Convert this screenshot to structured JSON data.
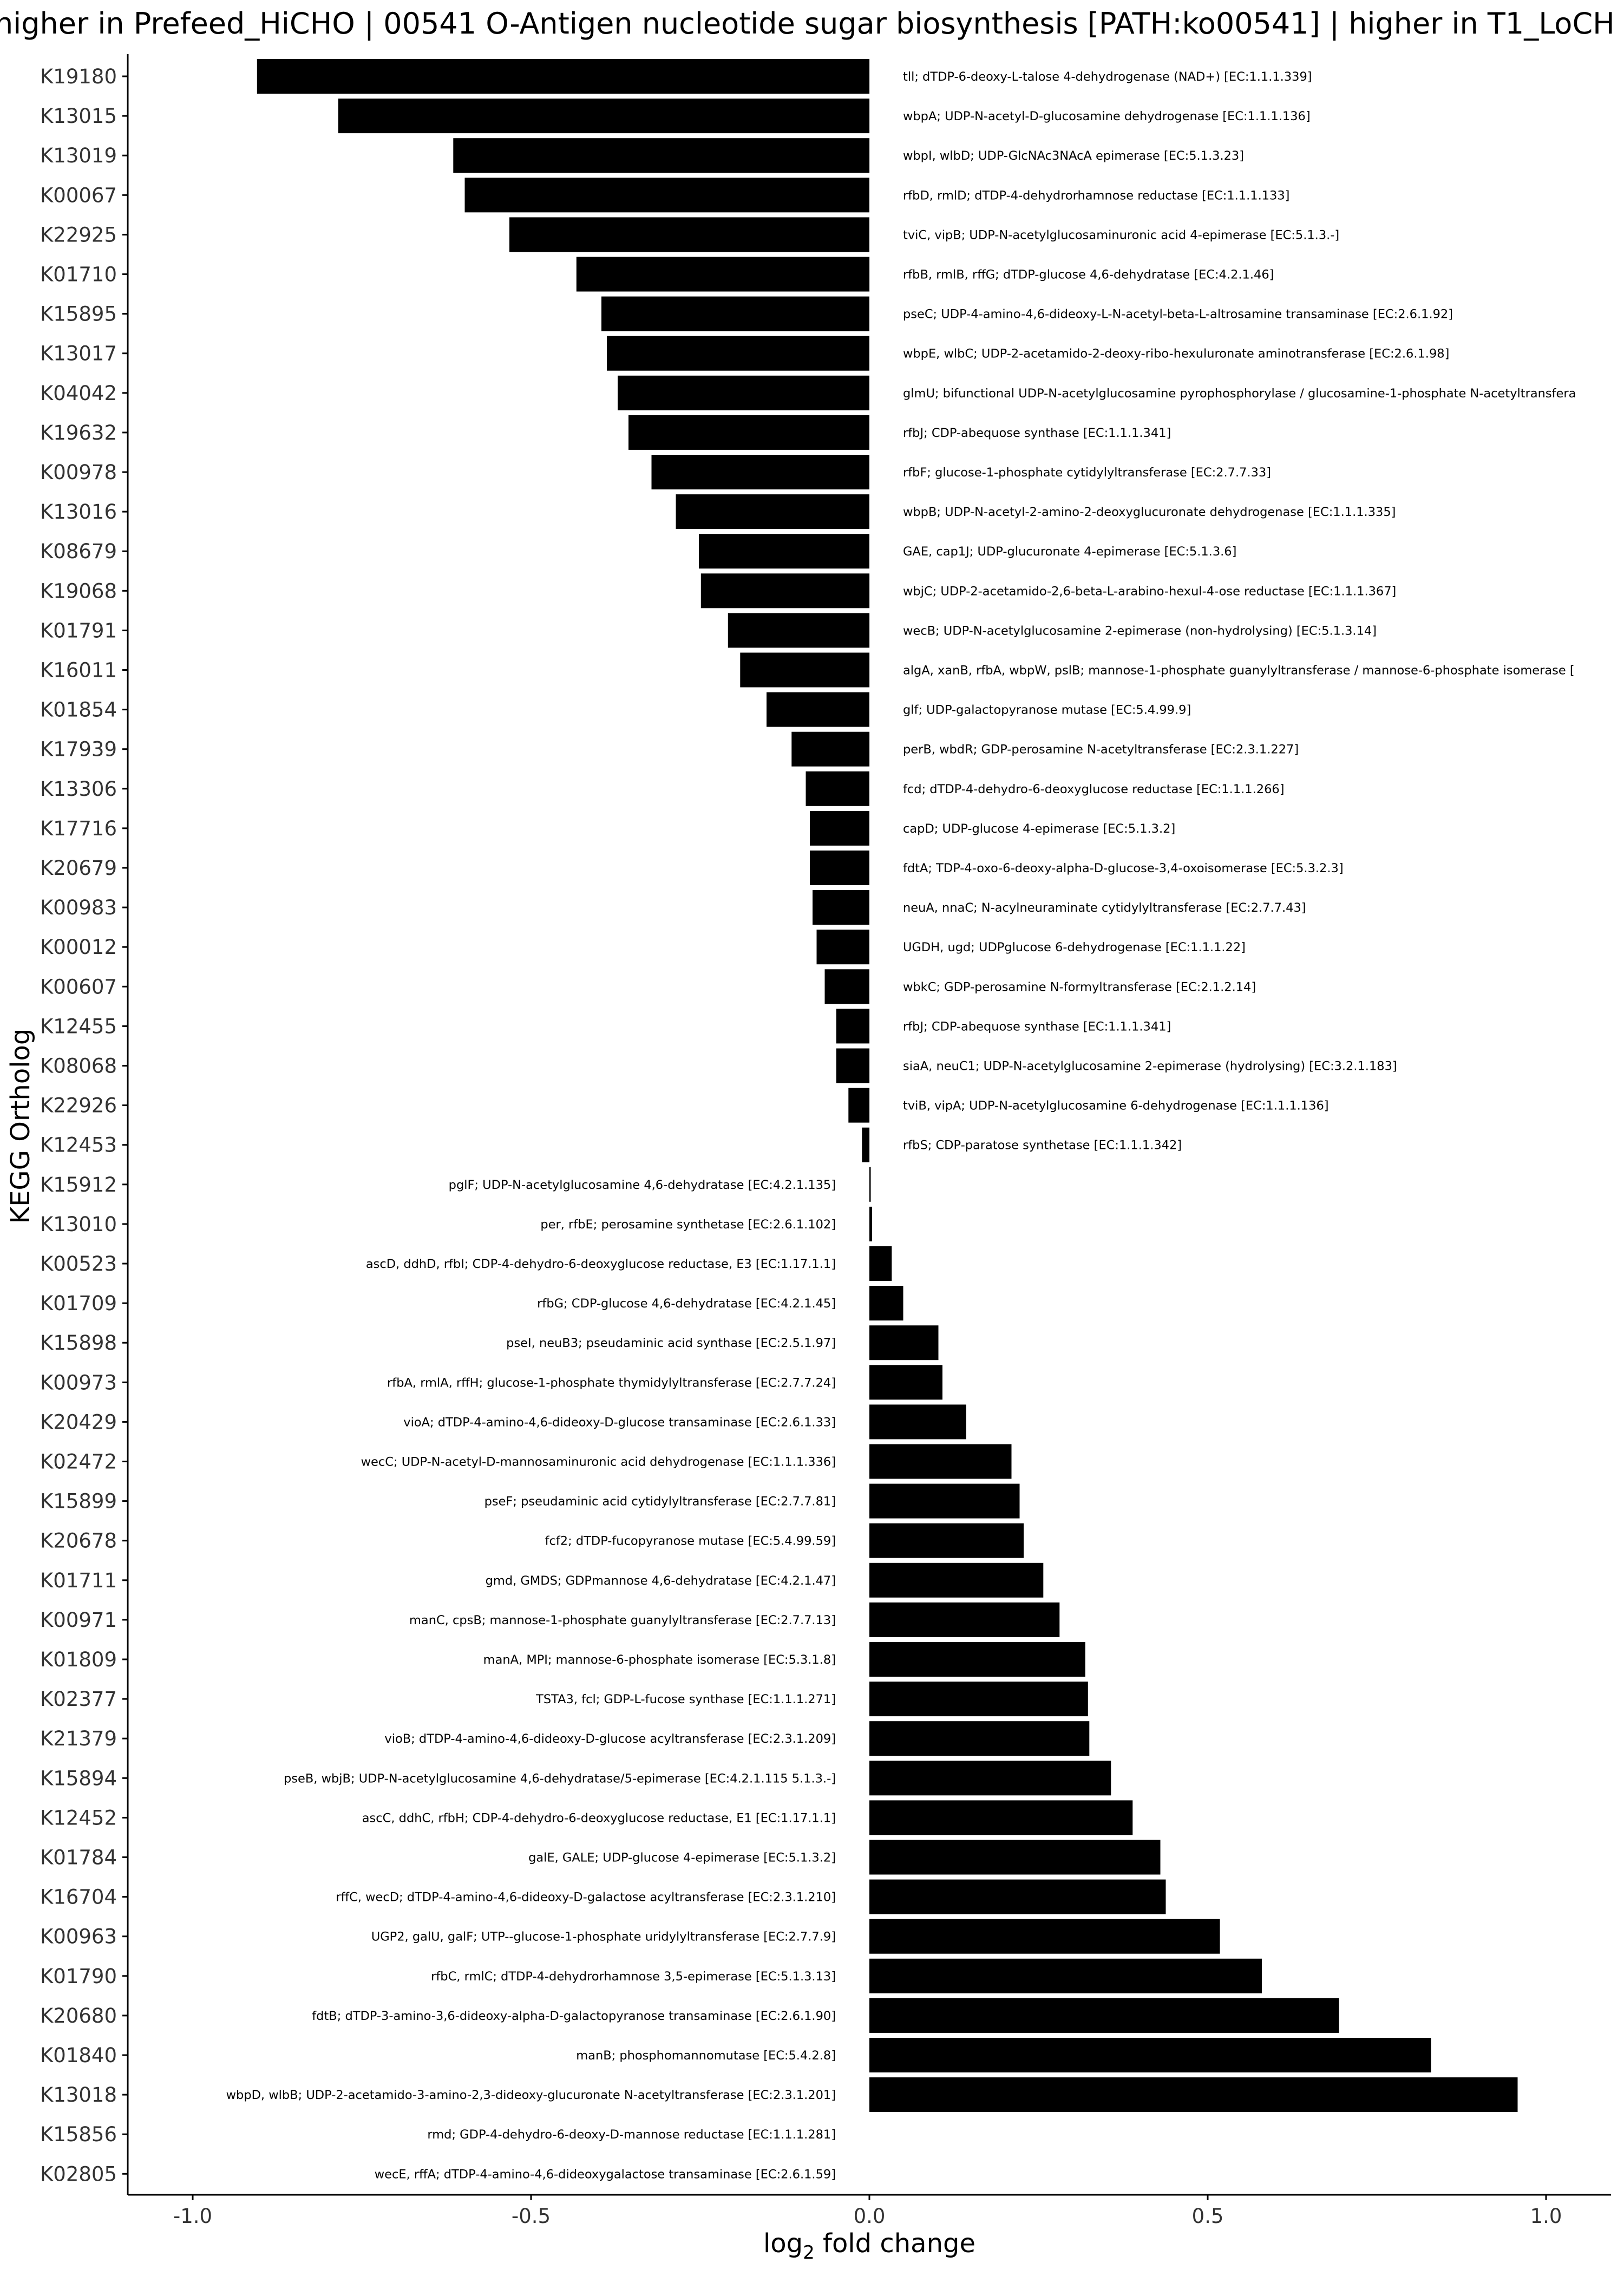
{
  "chart_data": {
    "type": "bar",
    "orientation": "horizontal",
    "title": "higher in Prefeed_HiCHO | 00541 O-Antigen nucleotide sugar biosynthesis [PATH:ko00541] | higher in T1_LoCH",
    "xlabel": "log₂ fold change",
    "ylabel": "KEGG Ortholog",
    "xlim": [
      -1.1,
      1.1
    ],
    "xticks": [
      -1.0,
      -0.5,
      0.0,
      0.5,
      1.0
    ],
    "xtick_labels": [
      "-1.0",
      "-0.5",
      "0.0",
      "0.5",
      "1.0"
    ],
    "grid": false,
    "bar_color": "#000000",
    "categories": [
      "K19180",
      "K13015",
      "K13019",
      "K00067",
      "K22925",
      "K01710",
      "K15895",
      "K13017",
      "K04042",
      "K19632",
      "K00978",
      "K13016",
      "K08679",
      "K19068",
      "K01791",
      "K16011",
      "K01854",
      "K17939",
      "K13306",
      "K17716",
      "K20679",
      "K00983",
      "K00012",
      "K00607",
      "K12455",
      "K08068",
      "K22926",
      "K12453",
      "K15912",
      "K13010",
      "K00523",
      "K01709",
      "K15898",
      "K00973",
      "K20429",
      "K02472",
      "K15899",
      "K20678",
      "K01711",
      "K00971",
      "K01809",
      "K02377",
      "K21379",
      "K15894",
      "K12452",
      "K01784",
      "K16704",
      "K00963",
      "K01790",
      "K20680",
      "K01840",
      "K13018",
      "K15856",
      "K02805"
    ],
    "values": [
      -0.905,
      -0.785,
      -0.615,
      -0.598,
      -0.532,
      -0.433,
      -0.396,
      -0.388,
      -0.372,
      -0.356,
      -0.322,
      -0.286,
      -0.252,
      -0.249,
      -0.209,
      -0.191,
      -0.152,
      -0.115,
      -0.094,
      -0.088,
      -0.088,
      -0.084,
      -0.078,
      -0.066,
      -0.049,
      -0.049,
      -0.031,
      -0.011,
      0.002,
      0.004,
      0.033,
      0.05,
      0.102,
      0.108,
      0.143,
      0.21,
      0.222,
      0.228,
      0.257,
      0.281,
      0.319,
      0.323,
      0.325,
      0.357,
      0.389,
      0.43,
      0.438,
      0.518,
      0.58,
      0.694,
      0.83,
      0.958,
      0.0,
      0.0
    ],
    "annotations": [
      "tll; dTDP-6-deoxy-L-talose 4-dehydrogenase (NAD+) [EC:1.1.1.339]",
      "wbpA; UDP-N-acetyl-D-glucosamine dehydrogenase [EC:1.1.1.136]",
      "wbpI, wlbD; UDP-GlcNAc3NAcA epimerase [EC:5.1.3.23]",
      "rfbD, rmlD; dTDP-4-dehydrorhamnose reductase [EC:1.1.1.133]",
      "tviC, vipB; UDP-N-acetylglucosaminuronic acid 4-epimerase [EC:5.1.3.-]",
      "rfbB, rmlB, rffG; dTDP-glucose 4,6-dehydratase [EC:4.2.1.46]",
      "pseC; UDP-4-amino-4,6-dideoxy-L-N-acetyl-beta-L-altrosamine transaminase [EC:2.6.1.92]",
      "wbpE, wlbC; UDP-2-acetamido-2-deoxy-ribo-hexuluronate aminotransferase [EC:2.6.1.98]",
      "glmU; bifunctional UDP-N-acetylglucosamine pyrophosphorylase / glucosamine-1-phosphate N-acetyltransfera",
      "rfbJ; CDP-abequose synthase [EC:1.1.1.341]",
      "rfbF; glucose-1-phosphate cytidylyltransferase [EC:2.7.7.33]",
      "wbpB; UDP-N-acetyl-2-amino-2-deoxyglucuronate dehydrogenase [EC:1.1.1.335]",
      "GAE, cap1J; UDP-glucuronate 4-epimerase [EC:5.1.3.6]",
      "wbjC; UDP-2-acetamido-2,6-beta-L-arabino-hexul-4-ose reductase [EC:1.1.1.367]",
      "wecB; UDP-N-acetylglucosamine 2-epimerase (non-hydrolysing) [EC:5.1.3.14]",
      "algA, xanB, rfbA, wbpW, pslB; mannose-1-phosphate guanylyltransferase / mannose-6-phosphate isomerase [",
      "glf; UDP-galactopyranose mutase [EC:5.4.99.9]",
      "perB, wbdR; GDP-perosamine N-acetyltransferase [EC:2.3.1.227]",
      "fcd; dTDP-4-dehydro-6-deoxyglucose reductase [EC:1.1.1.266]",
      "capD; UDP-glucose 4-epimerase [EC:5.1.3.2]",
      "fdtA; TDP-4-oxo-6-deoxy-alpha-D-glucose-3,4-oxoisomerase [EC:5.3.2.3]",
      "neuA, nnaC; N-acylneuraminate cytidylyltransferase [EC:2.7.7.43]",
      "UGDH, ugd; UDPglucose 6-dehydrogenase [EC:1.1.1.22]",
      "wbkC; GDP-perosamine N-formyltransferase [EC:2.1.2.14]",
      "rfbJ; CDP-abequose synthase [EC:1.1.1.341]",
      "siaA, neuC1; UDP-N-acetylglucosamine 2-epimerase (hydrolysing) [EC:3.2.1.183]",
      "tviB, vipA; UDP-N-acetylglucosamine 6-dehydrogenase [EC:1.1.1.136]",
      "rfbS; CDP-paratose synthetase [EC:1.1.1.342]",
      "pglF; UDP-N-acetylglucosamine 4,6-dehydratase [EC:4.2.1.135]",
      "per, rfbE; perosamine synthetase [EC:2.6.1.102]",
      "ascD, ddhD, rfbI; CDP-4-dehydro-6-deoxyglucose reductase, E3 [EC:1.17.1.1]",
      "rfbG; CDP-glucose 4,6-dehydratase [EC:4.2.1.45]",
      "pseI, neuB3; pseudaminic acid synthase [EC:2.5.1.97]",
      "rfbA, rmlA, rffH; glucose-1-phosphate thymidylyltransferase [EC:2.7.7.24]",
      "vioA; dTDP-4-amino-4,6-dideoxy-D-glucose transaminase [EC:2.6.1.33]",
      "wecC; UDP-N-acetyl-D-mannosaminuronic acid dehydrogenase [EC:1.1.1.336]",
      "pseF; pseudaminic acid cytidylyltransferase [EC:2.7.7.81]",
      "fcf2; dTDP-fucopyranose mutase [EC:5.4.99.59]",
      "gmd, GMDS; GDPmannose 4,6-dehydratase [EC:4.2.1.47]",
      "manC, cpsB; mannose-1-phosphate guanylyltransferase [EC:2.7.7.13]",
      "manA, MPI; mannose-6-phosphate isomerase [EC:5.3.1.8]",
      "TSTA3, fcl; GDP-L-fucose synthase [EC:1.1.1.271]",
      "vioB; dTDP-4-amino-4,6-dideoxy-D-glucose acyltransferase [EC:2.3.1.209]",
      "pseB, wbjB; UDP-N-acetylglucosamine 4,6-dehydratase/5-epimerase [EC:4.2.1.115 5.1.3.-]",
      "ascC, ddhC, rfbH; CDP-4-dehydro-6-deoxyglucose reductase, E1 [EC:1.17.1.1]",
      "galE, GALE; UDP-glucose 4-epimerase [EC:5.1.3.2]",
      "rffC, wecD; dTDP-4-amino-4,6-dideoxy-D-galactose acyltransferase [EC:2.3.1.210]",
      "UGP2, galU, galF; UTP--glucose-1-phosphate uridylyltransferase [EC:2.7.7.9]",
      "rfbC, rmlC; dTDP-4-dehydrorhamnose 3,5-epimerase [EC:5.1.3.13]",
      "fdtB; dTDP-3-amino-3,6-dideoxy-alpha-D-galactopyranose transaminase [EC:2.6.1.90]",
      "manB; phosphomannomutase [EC:5.4.2.8]",
      "wbpD, wlbB; UDP-2-acetamido-3-amino-2,3-dideoxy-glucuronate N-acetyltransferase [EC:2.3.1.201]",
      "rmd; GDP-4-dehydro-6-deoxy-D-mannose reductase [EC:1.1.1.281]",
      "wecE, rffA; dTDP-4-amino-4,6-dideoxygalactose transaminase [EC:2.6.1.59]"
    ]
  }
}
